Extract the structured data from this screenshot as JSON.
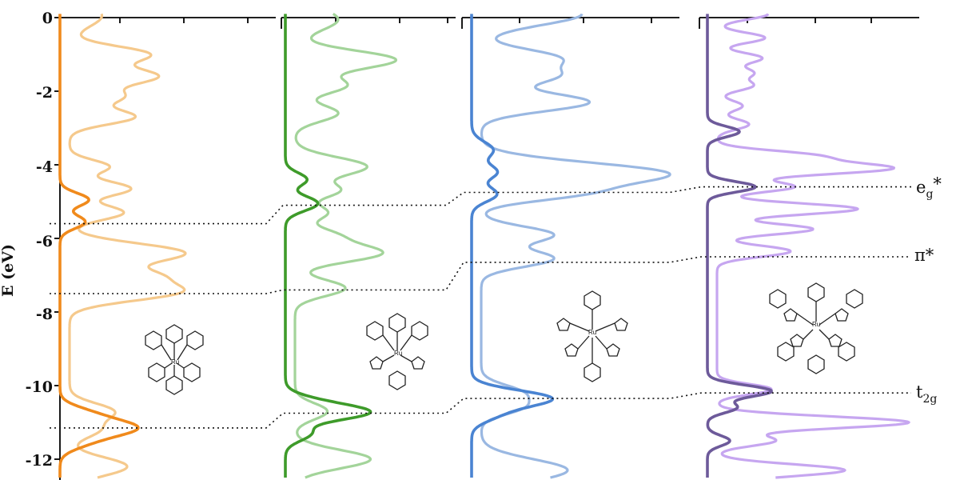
{
  "chart_data": {
    "type": "line",
    "ylabel": "E (eV)",
    "yticks": [
      "0",
      "-2",
      "-4",
      "-6",
      "-8",
      "-10",
      "-12"
    ],
    "ylim": [
      -12.5,
      0
    ],
    "orientation": "density-of-states panels, energy on vertical axis",
    "panels": [
      {
        "color_dark": "#f08a1c",
        "color_light": "#f5c98c",
        "partial_peaks": [
          {
            "e": -4.95,
            "h": 0.4,
            "w": 0.18
          },
          {
            "e": -5.55,
            "h": 0.35,
            "w": 0.18
          },
          {
            "e": -10.75,
            "h": 0.35,
            "w": 0.2
          },
          {
            "e": -11.15,
            "h": 1.0,
            "w": 0.22
          },
          {
            "e": -11.55,
            "h": 0.3,
            "w": 0.2
          }
        ],
        "total_peaks": [
          {
            "e": 0.05,
            "h": 0.45,
            "w": 0.3
          },
          {
            "e": -1.0,
            "h": 1.1,
            "w": 0.22
          },
          {
            "e": -1.6,
            "h": 1.2,
            "w": 0.22
          },
          {
            "e": -2.15,
            "h": 0.7,
            "w": 0.2
          },
          {
            "e": -2.7,
            "h": 0.9,
            "w": 0.2
          },
          {
            "e": -4.05,
            "h": 0.55,
            "w": 0.18
          },
          {
            "e": -4.65,
            "h": 0.85,
            "w": 0.2
          },
          {
            "e": -5.3,
            "h": 0.75,
            "w": 0.2
          },
          {
            "e": -6.4,
            "h": 1.6,
            "w": 0.26
          },
          {
            "e": -7.0,
            "h": 0.95,
            "w": 0.2
          },
          {
            "e": -7.45,
            "h": 1.5,
            "w": 0.24
          },
          {
            "e": -10.7,
            "h": 0.6,
            "w": 0.22
          },
          {
            "e": -11.2,
            "h": 0.4,
            "w": 0.22
          },
          {
            "e": -12.2,
            "h": 0.8,
            "w": 0.25
          }
        ],
        "levels_eV": [
          -5.6,
          -7.5,
          -11.15
        ]
      },
      {
        "color_dark": "#3e9b2a",
        "color_light": "#a3d49a",
        "partial_peaks": [
          {
            "e": -4.4,
            "h": 0.3,
            "w": 0.18
          },
          {
            "e": -5.05,
            "h": 0.45,
            "w": 0.2
          },
          {
            "e": -10.45,
            "h": 0.35,
            "w": 0.2
          },
          {
            "e": -10.75,
            "h": 1.05,
            "w": 0.2
          },
          {
            "e": -11.3,
            "h": 0.35,
            "w": 0.2
          }
        ],
        "total_peaks": [
          {
            "e": -0.05,
            "h": 0.6,
            "w": 0.3
          },
          {
            "e": -1.15,
            "h": 1.4,
            "w": 0.25
          },
          {
            "e": -1.85,
            "h": 0.7,
            "w": 0.22
          },
          {
            "e": -2.6,
            "h": 0.6,
            "w": 0.22
          },
          {
            "e": -4.05,
            "h": 1.0,
            "w": 0.25
          },
          {
            "e": -4.7,
            "h": 0.6,
            "w": 0.2
          },
          {
            "e": -5.3,
            "h": 0.45,
            "w": 0.2
          },
          {
            "e": -5.9,
            "h": 0.5,
            "w": 0.2
          },
          {
            "e": -6.4,
            "h": 1.2,
            "w": 0.24
          },
          {
            "e": -7.35,
            "h": 0.7,
            "w": 0.22
          },
          {
            "e": -10.7,
            "h": 0.45,
            "w": 0.22
          },
          {
            "e": -12.0,
            "h": 1.05,
            "w": 0.25
          }
        ],
        "levels_eV": [
          -5.1,
          -7.4,
          -10.75
        ]
      },
      {
        "color_dark": "#4a84d2",
        "color_light": "#9ab8e2",
        "partial_peaks": [
          {
            "e": -3.6,
            "h": 0.3,
            "w": 0.22
          },
          {
            "e": -4.2,
            "h": 0.35,
            "w": 0.2
          },
          {
            "e": -4.8,
            "h": 0.35,
            "w": 0.2
          },
          {
            "e": -10.35,
            "h": 1.1,
            "w": 0.22
          },
          {
            "e": -10.8,
            "h": 0.3,
            "w": 0.2
          }
        ],
        "total_peaks": [
          {
            "e": 0.1,
            "h": 1.4,
            "w": 0.3
          },
          {
            "e": -1.1,
            "h": 1.05,
            "w": 0.24
          },
          {
            "e": -1.6,
            "h": 0.95,
            "w": 0.22
          },
          {
            "e": -2.3,
            "h": 1.5,
            "w": 0.24
          },
          {
            "e": -4.25,
            "h": 2.6,
            "w": 0.3
          },
          {
            "e": -4.8,
            "h": 1.0,
            "w": 0.2
          },
          {
            "e": -5.9,
            "h": 1.0,
            "w": 0.22
          },
          {
            "e": -6.55,
            "h": 1.0,
            "w": 0.22
          },
          {
            "e": -10.2,
            "h": 0.55,
            "w": 0.22
          },
          {
            "e": -10.6,
            "h": 0.5,
            "w": 0.2
          },
          {
            "e": -12.3,
            "h": 1.2,
            "w": 0.3
          }
        ],
        "levels_eV": [
          -4.75,
          -6.65,
          -10.35
        ]
      },
      {
        "color_dark": "#6d5a9a",
        "color_light": "#c6a6f0",
        "partial_peaks": [
          {
            "e": -3.1,
            "h": 0.5,
            "w": 0.14
          },
          {
            "e": -4.6,
            "h": 0.75,
            "w": 0.14
          },
          {
            "e": -10.15,
            "h": 1.0,
            "w": 0.16
          },
          {
            "e": -10.6,
            "h": 0.45,
            "w": 0.14
          },
          {
            "e": -11.5,
            "h": 0.35,
            "w": 0.14
          }
        ],
        "total_peaks": [
          {
            "e": 0.1,
            "h": 0.8,
            "w": 0.15
          },
          {
            "e": -0.55,
            "h": 0.75,
            "w": 0.14
          },
          {
            "e": -1.1,
            "h": 0.7,
            "w": 0.14
          },
          {
            "e": -1.5,
            "h": 0.55,
            "w": 0.14
          },
          {
            "e": -1.85,
            "h": 0.55,
            "w": 0.14
          },
          {
            "e": -2.4,
            "h": 0.4,
            "w": 0.14
          },
          {
            "e": -2.9,
            "h": 0.5,
            "w": 0.14
          },
          {
            "e": -3.75,
            "h": 1.4,
            "w": 0.14
          },
          {
            "e": -4.1,
            "h": 2.7,
            "w": 0.16
          },
          {
            "e": -4.6,
            "h": 1.2,
            "w": 0.14
          },
          {
            "e": -5.2,
            "h": 2.2,
            "w": 0.15
          },
          {
            "e": -5.75,
            "h": 1.5,
            "w": 0.14
          },
          {
            "e": -6.35,
            "h": 1.15,
            "w": 0.15
          },
          {
            "e": -10.1,
            "h": 0.85,
            "w": 0.14
          },
          {
            "e": -11.0,
            "h": 3.0,
            "w": 0.16
          },
          {
            "e": -11.5,
            "h": 0.9,
            "w": 0.14
          },
          {
            "e": -12.3,
            "h": 2.0,
            "w": 0.16
          }
        ],
        "levels_eV": [
          -4.6,
          -6.5,
          -10.2
        ]
      }
    ],
    "level_labels": [
      "e",
      "g",
      "*",
      "π*",
      "t",
      "2g"
    ]
  }
}
